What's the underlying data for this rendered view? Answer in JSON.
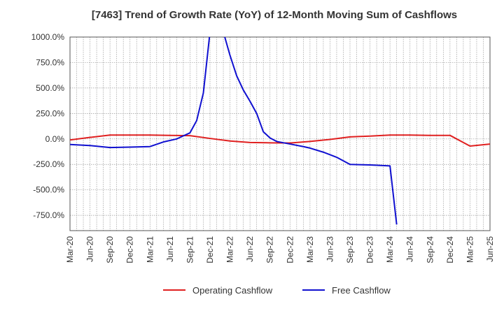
{
  "chart_data": {
    "type": "line",
    "title": "[7463]  Trend of Growth Rate (YoY) of 12-Month Moving Sum of Cashflows",
    "xlabel": "",
    "ylabel": "",
    "ylim": [
      -900,
      1000
    ],
    "y_ticks": [
      "1000.0%",
      "750.0%",
      "500.0%",
      "250.0%",
      "0.0%",
      "-250.0%",
      "-500.0%",
      "-750.0%"
    ],
    "y_tick_values": [
      1000,
      750,
      500,
      250,
      0,
      -250,
      -500,
      -750
    ],
    "x_ticks": [
      "Mar-20",
      "Jun-20",
      "Sep-20",
      "Dec-20",
      "Mar-21",
      "Jun-21",
      "Sep-21",
      "Dec-21",
      "Mar-22",
      "Jun-22",
      "Sep-22",
      "Dec-22",
      "Mar-23",
      "Jun-23",
      "Sep-23",
      "Dec-23",
      "Mar-24",
      "Jun-24",
      "Sep-24",
      "Dec-24",
      "Mar-25",
      "Jun-25"
    ],
    "grid": true,
    "legend_position": "bottom",
    "series": [
      {
        "name": "Operating Cashflow",
        "color": "#e02020",
        "points": [
          [
            0,
            -10
          ],
          [
            3,
            15
          ],
          [
            6,
            38
          ],
          [
            9,
            38
          ],
          [
            12,
            38
          ],
          [
            15,
            35
          ],
          [
            18,
            32
          ],
          [
            21,
            5
          ],
          [
            24,
            -20
          ],
          [
            27,
            -35
          ],
          [
            30,
            -38
          ],
          [
            33,
            -40
          ],
          [
            36,
            -25
          ],
          [
            39,
            -5
          ],
          [
            42,
            20
          ],
          [
            45,
            28
          ],
          [
            48,
            38
          ],
          [
            51,
            38
          ],
          [
            54,
            35
          ],
          [
            57,
            35
          ],
          [
            60,
            -70
          ],
          [
            63,
            -50
          ],
          [
            66,
            -55
          ],
          [
            69,
            -58
          ],
          [
            72,
            -58
          ]
        ]
      },
      {
        "name": "Free Cashflow",
        "color": "#1010d0",
        "points": [
          [
            0,
            -55
          ],
          [
            3,
            -65
          ],
          [
            6,
            -85
          ],
          [
            9,
            -80
          ],
          [
            12,
            -75
          ],
          [
            14,
            -30
          ],
          [
            16,
            0
          ],
          [
            18,
            60
          ],
          [
            19,
            180
          ],
          [
            20,
            450
          ],
          [
            21,
            1050
          ],
          [
            23,
            1050
          ],
          [
            24,
            820
          ],
          [
            25,
            620
          ],
          [
            26,
            480
          ],
          [
            27,
            370
          ],
          [
            28,
            250
          ],
          [
            29,
            70
          ],
          [
            30,
            10
          ],
          [
            31,
            -25
          ],
          [
            33,
            -50
          ],
          [
            35,
            -75
          ],
          [
            36,
            -90
          ],
          [
            38,
            -130
          ],
          [
            40,
            -180
          ],
          [
            42,
            -250
          ],
          [
            45,
            -255
          ],
          [
            48,
            -265
          ],
          [
            49,
            -840
          ]
        ]
      }
    ]
  }
}
